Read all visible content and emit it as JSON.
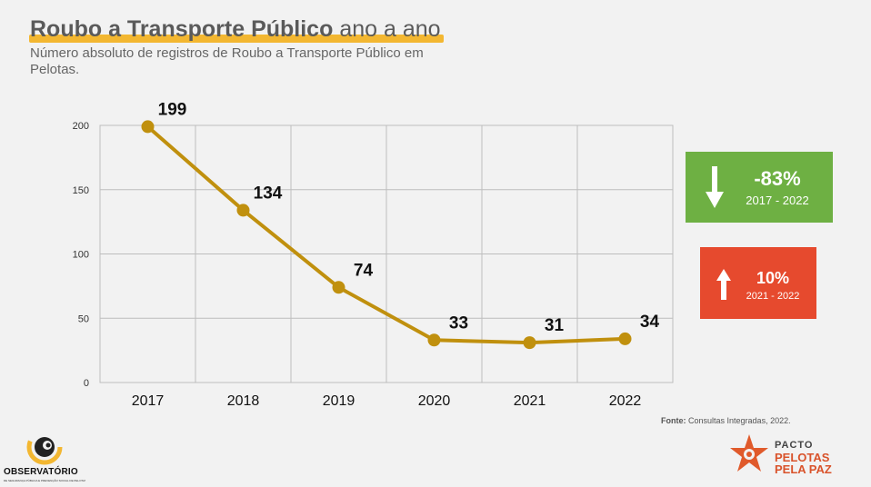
{
  "header": {
    "title_bold": "Roubo a Transporte Público",
    "title_rest": "ano a ano",
    "subtitle": "Número absoluto de registros de Roubo a Transporte Público em Pelotas."
  },
  "chart_data": {
    "type": "line",
    "categories": [
      "2017",
      "2018",
      "2019",
      "2020",
      "2021",
      "2022"
    ],
    "values": [
      199,
      134,
      74,
      33,
      31,
      34
    ],
    "data_labels": [
      "199",
      "134",
      "74",
      "33",
      "31",
      "34"
    ],
    "yticks": [
      "0",
      "50",
      "100",
      "150",
      "200"
    ],
    "ylim": [
      0,
      200
    ],
    "grid": true,
    "line_color": "#c0900e",
    "marker_color": "#c0900e"
  },
  "kpis": {
    "decrease": {
      "value": "-83%",
      "range": "2017 - 2022",
      "color": "#6eb043",
      "icon": "arrow-down-icon"
    },
    "increase": {
      "value": "10%",
      "range": "2021 - 2022",
      "color": "#e64a2e",
      "icon": "arrow-up-icon"
    }
  },
  "source": {
    "label": "Fonte:",
    "text": "Consultas Integradas, 2022."
  },
  "logos": {
    "left_name": "OBSERVATÓRIO",
    "left_sub": "DE SEGURANÇA PÚBLICA E PREVENÇÃO SOCIAL DE PELOTAS",
    "right_line1": "PACTO",
    "right_line2": "PELOTAS",
    "right_line3": "PELA PAZ"
  }
}
